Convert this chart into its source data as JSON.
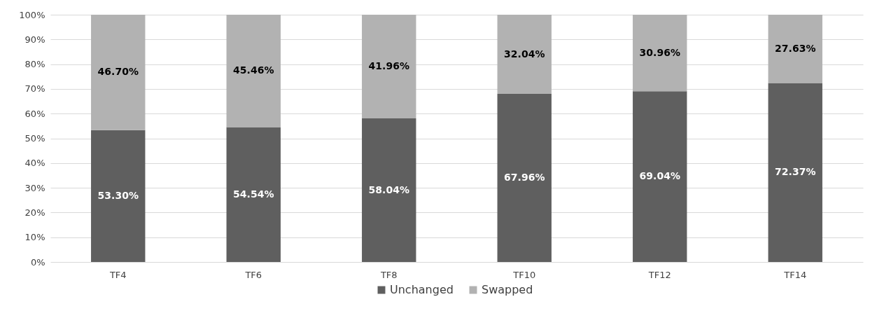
{
  "chart_data": {
    "type": "bar",
    "stacked": true,
    "categories": [
      "TF4",
      "TF6",
      "TF8",
      "TF10",
      "TF12",
      "TF14"
    ],
    "series": [
      {
        "name": "Unchanged",
        "color": "#5f5f5f",
        "values": [
          53.3,
          54.54,
          58.04,
          67.96,
          69.04,
          72.37
        ],
        "value_labels": [
          "53.30%",
          "54.54%",
          "58.04%",
          "67.96%",
          "69.04%",
          "72.37%"
        ]
      },
      {
        "name": "Swapped",
        "color": "#b2b2b2",
        "values": [
          46.7,
          45.46,
          41.96,
          32.04,
          30.96,
          27.63
        ],
        "value_labels": [
          "46.70%",
          "45.46%",
          "41.96%",
          "32.04%",
          "30.96%",
          "27.63%"
        ]
      }
    ],
    "ylim": [
      0,
      100
    ],
    "yticks": [
      {
        "value": 0,
        "label": "0%"
      },
      {
        "value": 10,
        "label": "10%"
      },
      {
        "value": 20,
        "label": "20%"
      },
      {
        "value": 30,
        "label": "30%"
      },
      {
        "value": 40,
        "label": "40%"
      },
      {
        "value": 50,
        "label": "50%"
      },
      {
        "value": 60,
        "label": "60%"
      },
      {
        "value": 70,
        "label": "70%"
      },
      {
        "value": 80,
        "label": "80%"
      },
      {
        "value": 90,
        "label": "90%"
      },
      {
        "value": 100,
        "label": "100%"
      }
    ],
    "grid": "y",
    "legend": "bottom"
  }
}
